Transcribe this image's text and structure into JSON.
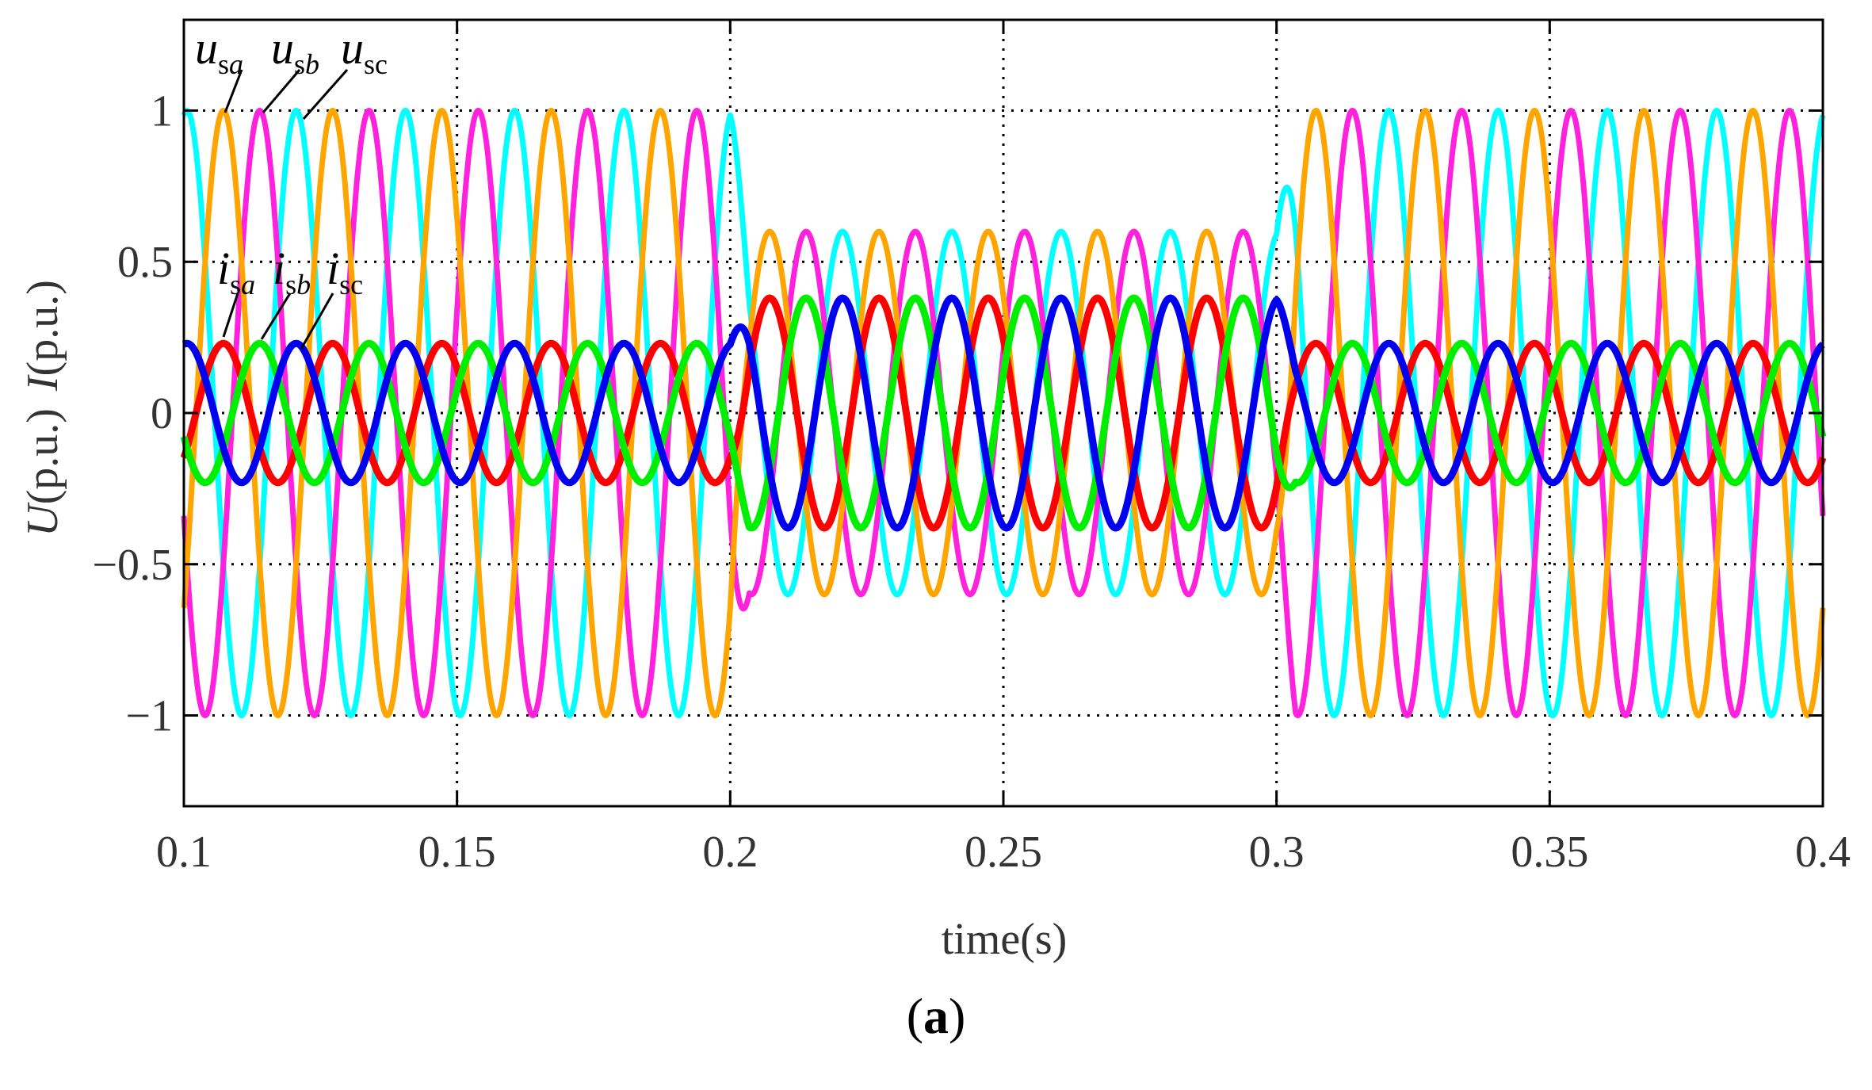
{
  "chart_data": {
    "type": "line",
    "xlabel": "time(s)",
    "ylabel_u": "U",
    "ylabel_i": "I",
    "ylabel_unit": "(p.u.)",
    "xlim": [
      0.1,
      0.4
    ],
    "ylim": [
      -1.3,
      1.3
    ],
    "xticks": [
      0.1,
      0.15,
      0.2,
      0.25,
      0.3,
      0.35,
      0.4
    ],
    "xtick_labels": [
      "0.1",
      "0.15",
      "0.2",
      "0.25",
      "0.3",
      "0.35",
      "0.4"
    ],
    "yticks": [
      -1,
      -0.5,
      0,
      0.5,
      1
    ],
    "ytick_labels": [
      "−1",
      "−0.5",
      "0",
      "0.5",
      "1"
    ],
    "grid": "dotted",
    "frequency_hz": 50,
    "sag_interval": [
      0.2,
      0.3
    ],
    "voltage_amplitude": {
      "normal": 1.0,
      "sag": 0.6
    },
    "current_amplitude": {
      "normal": 0.23,
      "sag": 0.38
    },
    "series": [
      {
        "name": "usa",
        "kind": "voltage",
        "phase_deg": 0,
        "color": "#ffa500"
      },
      {
        "name": "usb",
        "kind": "voltage",
        "phase_deg": -120,
        "color": "#ff22dd"
      },
      {
        "name": "usc",
        "kind": "voltage",
        "phase_deg": 120,
        "color": "#00ffff"
      },
      {
        "name": "isa",
        "kind": "current",
        "phase_deg": 0,
        "color": "#ff0000"
      },
      {
        "name": "isb",
        "kind": "current",
        "phase_deg": -120,
        "color": "#00ee00"
      },
      {
        "name": "isc",
        "kind": "current",
        "phase_deg": 120,
        "color": "#0000ee"
      }
    ],
    "annotations": {
      "u": [
        {
          "main": "u",
          "sub": "sa"
        },
        {
          "main": "u",
          "sub": "sb"
        },
        {
          "main": "u",
          "sub": "sc"
        }
      ],
      "i": [
        {
          "main": "i",
          "sub": "sa"
        },
        {
          "main": "i",
          "sub": "sb"
        },
        {
          "main": "i",
          "sub": "sc"
        }
      ]
    }
  },
  "caption": {
    "open": "(",
    "letter": "a",
    "close": ")"
  }
}
